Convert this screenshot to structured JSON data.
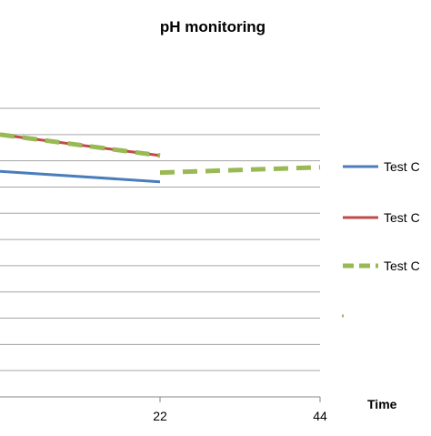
{
  "chart_data": {
    "type": "line",
    "title": "pH monitoring",
    "xlabel": "Time",
    "ylabel": "",
    "x_ticks": [
      22,
      44
    ],
    "xlim": [
      0,
      44
    ],
    "ylim": [
      0,
      11
    ],
    "grid": true,
    "legend_position": "right",
    "series": [
      {
        "name": "Test C",
        "color": "#4a7ebb",
        "style": "solid",
        "x": [
          0,
          22
        ],
        "y": [
          8.6,
          8.2
        ]
      },
      {
        "name": "Test C",
        "color": "#be4b48",
        "style": "solid",
        "x": [
          0,
          22
        ],
        "y": [
          10.0,
          9.2
        ]
      },
      {
        "name": "Test C",
        "color": "#98b954",
        "style": "dashed",
        "x": [
          0,
          22
        ],
        "y": [
          10.0,
          9.2
        ]
      },
      {
        "color": "#98b954",
        "style": "dashed",
        "x": [
          22,
          44
        ],
        "y": [
          8.55,
          8.75
        ]
      }
    ]
  }
}
